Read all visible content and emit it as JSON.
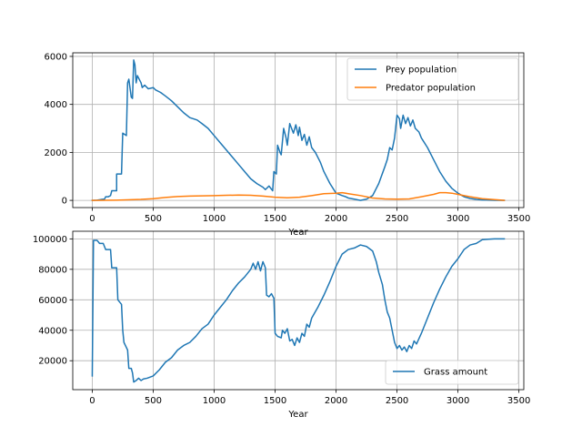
{
  "chart_data": [
    {
      "type": "line",
      "xlabel": "Year",
      "ylabel": "",
      "xlim": [
        -160,
        3540
      ],
      "ylim": [
        -300,
        6150
      ],
      "xticks": [
        0,
        500,
        1000,
        1500,
        2000,
        2500,
        3000,
        3500
      ],
      "yticks": [
        0,
        2000,
        4000,
        6000
      ],
      "grid": true,
      "legend_position": "top-right",
      "series": [
        {
          "name": "Prey population",
          "color": "#1f77b4",
          "points": [
            [
              0,
              0
            ],
            [
              40,
              10
            ],
            [
              80,
              40
            ],
            [
              100,
              50
            ],
            [
              110,
              150
            ],
            [
              130,
              150
            ],
            [
              150,
              200
            ],
            [
              160,
              400
            ],
            [
              200,
              400
            ],
            [
              200,
              1100
            ],
            [
              240,
              1100
            ],
            [
              250,
              2800
            ],
            [
              280,
              2700
            ],
            [
              290,
              4900
            ],
            [
              300,
              5050
            ],
            [
              320,
              4300
            ],
            [
              330,
              4250
            ],
            [
              340,
              5850
            ],
            [
              350,
              5650
            ],
            [
              360,
              4900
            ],
            [
              370,
              5200
            ],
            [
              400,
              4900
            ],
            [
              410,
              4700
            ],
            [
              430,
              4800
            ],
            [
              460,
              4650
            ],
            [
              500,
              4700
            ],
            [
              520,
              4600
            ],
            [
              560,
              4500
            ],
            [
              600,
              4350
            ],
            [
              650,
              4150
            ],
            [
              700,
              3900
            ],
            [
              750,
              3650
            ],
            [
              800,
              3450
            ],
            [
              860,
              3350
            ],
            [
              900,
              3200
            ],
            [
              950,
              3000
            ],
            [
              1000,
              2700
            ],
            [
              1050,
              2400
            ],
            [
              1100,
              2100
            ],
            [
              1150,
              1800
            ],
            [
              1200,
              1500
            ],
            [
              1250,
              1200
            ],
            [
              1300,
              900
            ],
            [
              1350,
              700
            ],
            [
              1400,
              550
            ],
            [
              1420,
              450
            ],
            [
              1450,
              600
            ],
            [
              1480,
              400
            ],
            [
              1490,
              1200
            ],
            [
              1510,
              1100
            ],
            [
              1520,
              2300
            ],
            [
              1540,
              2000
            ],
            [
              1550,
              1900
            ],
            [
              1570,
              3000
            ],
            [
              1590,
              2600
            ],
            [
              1600,
              2300
            ],
            [
              1620,
              3200
            ],
            [
              1650,
              2800
            ],
            [
              1670,
              3150
            ],
            [
              1690,
              2700
            ],
            [
              1700,
              3050
            ],
            [
              1720,
              2500
            ],
            [
              1740,
              2750
            ],
            [
              1760,
              2300
            ],
            [
              1780,
              2650
            ],
            [
              1800,
              2200
            ],
            [
              1830,
              2000
            ],
            [
              1870,
              1600
            ],
            [
              1900,
              1200
            ],
            [
              1950,
              700
            ],
            [
              2000,
              300
            ],
            [
              2050,
              200
            ],
            [
              2080,
              150
            ],
            [
              2100,
              100
            ],
            [
              2150,
              50
            ],
            [
              2200,
              0
            ],
            [
              2250,
              50
            ],
            [
              2300,
              200
            ],
            [
              2350,
              700
            ],
            [
              2400,
              1400
            ],
            [
              2420,
              1700
            ],
            [
              2440,
              2200
            ],
            [
              2460,
              2100
            ],
            [
              2480,
              2600
            ],
            [
              2500,
              3550
            ],
            [
              2520,
              3400
            ],
            [
              2530,
              3000
            ],
            [
              2550,
              3550
            ],
            [
              2570,
              3200
            ],
            [
              2590,
              3450
            ],
            [
              2610,
              3100
            ],
            [
              2630,
              3350
            ],
            [
              2650,
              3000
            ],
            [
              2680,
              2850
            ],
            [
              2700,
              2600
            ],
            [
              2750,
              2200
            ],
            [
              2800,
              1700
            ],
            [
              2850,
              1200
            ],
            [
              2900,
              800
            ],
            [
              2950,
              500
            ],
            [
              3000,
              300
            ],
            [
              3050,
              150
            ],
            [
              3100,
              80
            ],
            [
              3150,
              40
            ],
            [
              3200,
              20
            ],
            [
              3300,
              5
            ],
            [
              3380,
              0
            ]
          ]
        },
        {
          "name": "Predator population",
          "color": "#ff7f0e",
          "points": [
            [
              0,
              0
            ],
            [
              200,
              10
            ],
            [
              400,
              40
            ],
            [
              500,
              70
            ],
            [
              600,
              120
            ],
            [
              700,
              160
            ],
            [
              800,
              180
            ],
            [
              900,
              190
            ],
            [
              1000,
              200
            ],
            [
              1100,
              210
            ],
            [
              1200,
              220
            ],
            [
              1300,
              210
            ],
            [
              1400,
              180
            ],
            [
              1500,
              130
            ],
            [
              1600,
              110
            ],
            [
              1700,
              130
            ],
            [
              1800,
              200
            ],
            [
              1900,
              280
            ],
            [
              2000,
              300
            ],
            [
              2050,
              320
            ],
            [
              2100,
              280
            ],
            [
              2200,
              200
            ],
            [
              2300,
              100
            ],
            [
              2400,
              60
            ],
            [
              2500,
              50
            ],
            [
              2600,
              60
            ],
            [
              2700,
              150
            ],
            [
              2800,
              250
            ],
            [
              2850,
              320
            ],
            [
              2900,
              320
            ],
            [
              2950,
              300
            ],
            [
              3000,
              250
            ],
            [
              3100,
              150
            ],
            [
              3200,
              70
            ],
            [
              3300,
              30
            ],
            [
              3380,
              0
            ]
          ]
        }
      ]
    },
    {
      "type": "line",
      "xlabel": "Year",
      "ylabel": "",
      "xlim": [
        -160,
        3540
      ],
      "ylim": [
        1000,
        105000
      ],
      "xticks": [
        0,
        500,
        1000,
        1500,
        2000,
        2500,
        3000,
        3500
      ],
      "yticks": [
        20000,
        40000,
        60000,
        80000,
        100000
      ],
      "grid": true,
      "legend_position": "bottom-right",
      "series": [
        {
          "name": "Grass amount",
          "color": "#1f77b4",
          "points": [
            [
              0,
              10000
            ],
            [
              10,
              99000
            ],
            [
              40,
              99000
            ],
            [
              60,
              97000
            ],
            [
              90,
              97000
            ],
            [
              110,
              93000
            ],
            [
              150,
              93000
            ],
            [
              160,
              81000
            ],
            [
              200,
              81000
            ],
            [
              210,
              60000
            ],
            [
              240,
              57000
            ],
            [
              250,
              40000
            ],
            [
              260,
              32000
            ],
            [
              290,
              27000
            ],
            [
              300,
              15000
            ],
            [
              320,
              15000
            ],
            [
              330,
              12000
            ],
            [
              340,
              6000
            ],
            [
              360,
              7000
            ],
            [
              380,
              8500
            ],
            [
              400,
              7000
            ],
            [
              420,
              8000
            ],
            [
              450,
              8500
            ],
            [
              500,
              10000
            ],
            [
              550,
              14000
            ],
            [
              600,
              19000
            ],
            [
              650,
              22000
            ],
            [
              700,
              27000
            ],
            [
              750,
              30000
            ],
            [
              800,
              32000
            ],
            [
              850,
              36000
            ],
            [
              900,
              41000
            ],
            [
              950,
              44000
            ],
            [
              1000,
              50000
            ],
            [
              1050,
              55000
            ],
            [
              1100,
              60000
            ],
            [
              1150,
              66000
            ],
            [
              1200,
              71000
            ],
            [
              1250,
              75000
            ],
            [
              1300,
              80000
            ],
            [
              1320,
              84000
            ],
            [
              1340,
              80000
            ],
            [
              1360,
              85000
            ],
            [
              1380,
              79000
            ],
            [
              1400,
              85000
            ],
            [
              1420,
              81000
            ],
            [
              1430,
              63000
            ],
            [
              1450,
              62000
            ],
            [
              1470,
              64000
            ],
            [
              1490,
              61000
            ],
            [
              1500,
              38000
            ],
            [
              1520,
              36000
            ],
            [
              1550,
              35000
            ],
            [
              1560,
              40000
            ],
            [
              1580,
              38000
            ],
            [
              1600,
              41000
            ],
            [
              1620,
              33000
            ],
            [
              1640,
              34000
            ],
            [
              1660,
              30000
            ],
            [
              1680,
              35000
            ],
            [
              1700,
              32000
            ],
            [
              1720,
              38000
            ],
            [
              1740,
              36000
            ],
            [
              1760,
              44000
            ],
            [
              1780,
              42000
            ],
            [
              1800,
              48000
            ],
            [
              1850,
              55000
            ],
            [
              1900,
              63000
            ],
            [
              1950,
              72000
            ],
            [
              2000,
              82000
            ],
            [
              2050,
              90000
            ],
            [
              2100,
              93000
            ],
            [
              2150,
              94000
            ],
            [
              2200,
              96000
            ],
            [
              2250,
              95000
            ],
            [
              2300,
              92000
            ],
            [
              2330,
              85000
            ],
            [
              2350,
              78000
            ],
            [
              2380,
              70000
            ],
            [
              2400,
              60000
            ],
            [
              2420,
              52000
            ],
            [
              2440,
              48000
            ],
            [
              2460,
              40000
            ],
            [
              2480,
              32000
            ],
            [
              2500,
              28000
            ],
            [
              2520,
              30000
            ],
            [
              2540,
              27000
            ],
            [
              2560,
              29000
            ],
            [
              2580,
              26000
            ],
            [
              2600,
              30000
            ],
            [
              2620,
              28000
            ],
            [
              2640,
              33000
            ],
            [
              2660,
              31000
            ],
            [
              2700,
              38000
            ],
            [
              2750,
              48000
            ],
            [
              2800,
              58000
            ],
            [
              2850,
              67000
            ],
            [
              2900,
              75000
            ],
            [
              2950,
              82000
            ],
            [
              3000,
              87000
            ],
            [
              3050,
              93000
            ],
            [
              3100,
              96000
            ],
            [
              3150,
              97000
            ],
            [
              3200,
              99500
            ],
            [
              3250,
              99800
            ],
            [
              3300,
              100000
            ],
            [
              3380,
              100000
            ]
          ]
        }
      ]
    }
  ]
}
